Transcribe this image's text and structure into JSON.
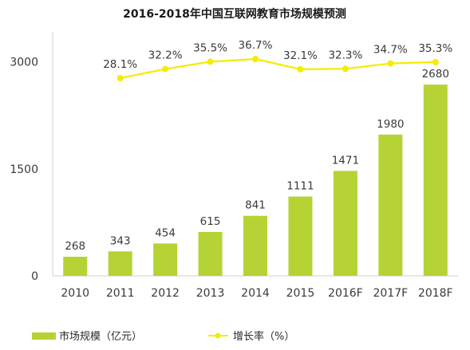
{
  "chart_data": {
    "type": "bar",
    "title": "2016-2018年中国互联网教育市场规模预测",
    "categories": [
      "2010",
      "2011",
      "2012",
      "2013",
      "2014",
      "2015",
      "2016F",
      "2017F",
      "2018F"
    ],
    "y_ticks": [
      "0",
      "1500",
      "3000"
    ],
    "ylim": [
      0,
      3000
    ],
    "grid": false,
    "legend_position": "bottom",
    "series": [
      {
        "name": "市场规模（亿元）",
        "type": "bar",
        "color": "#b5d334",
        "values": [
          268,
          343,
          454,
          615,
          841,
          1111,
          1471,
          1980,
          2680
        ],
        "labels": [
          "268",
          "343",
          "454",
          "615",
          "841",
          "1111",
          "1471",
          "1980",
          "2680"
        ]
      },
      {
        "name": "增长率（%）",
        "type": "line",
        "color": "#f5ec00",
        "values": [
          null,
          28.1,
          32.2,
          35.5,
          36.7,
          32.1,
          32.3,
          34.7,
          35.3
        ],
        "labels": [
          "",
          "28.1%",
          "32.2%",
          "35.5%",
          "36.7%",
          "32.1%",
          "32.3%",
          "34.7%",
          "35.3%"
        ]
      }
    ]
  }
}
